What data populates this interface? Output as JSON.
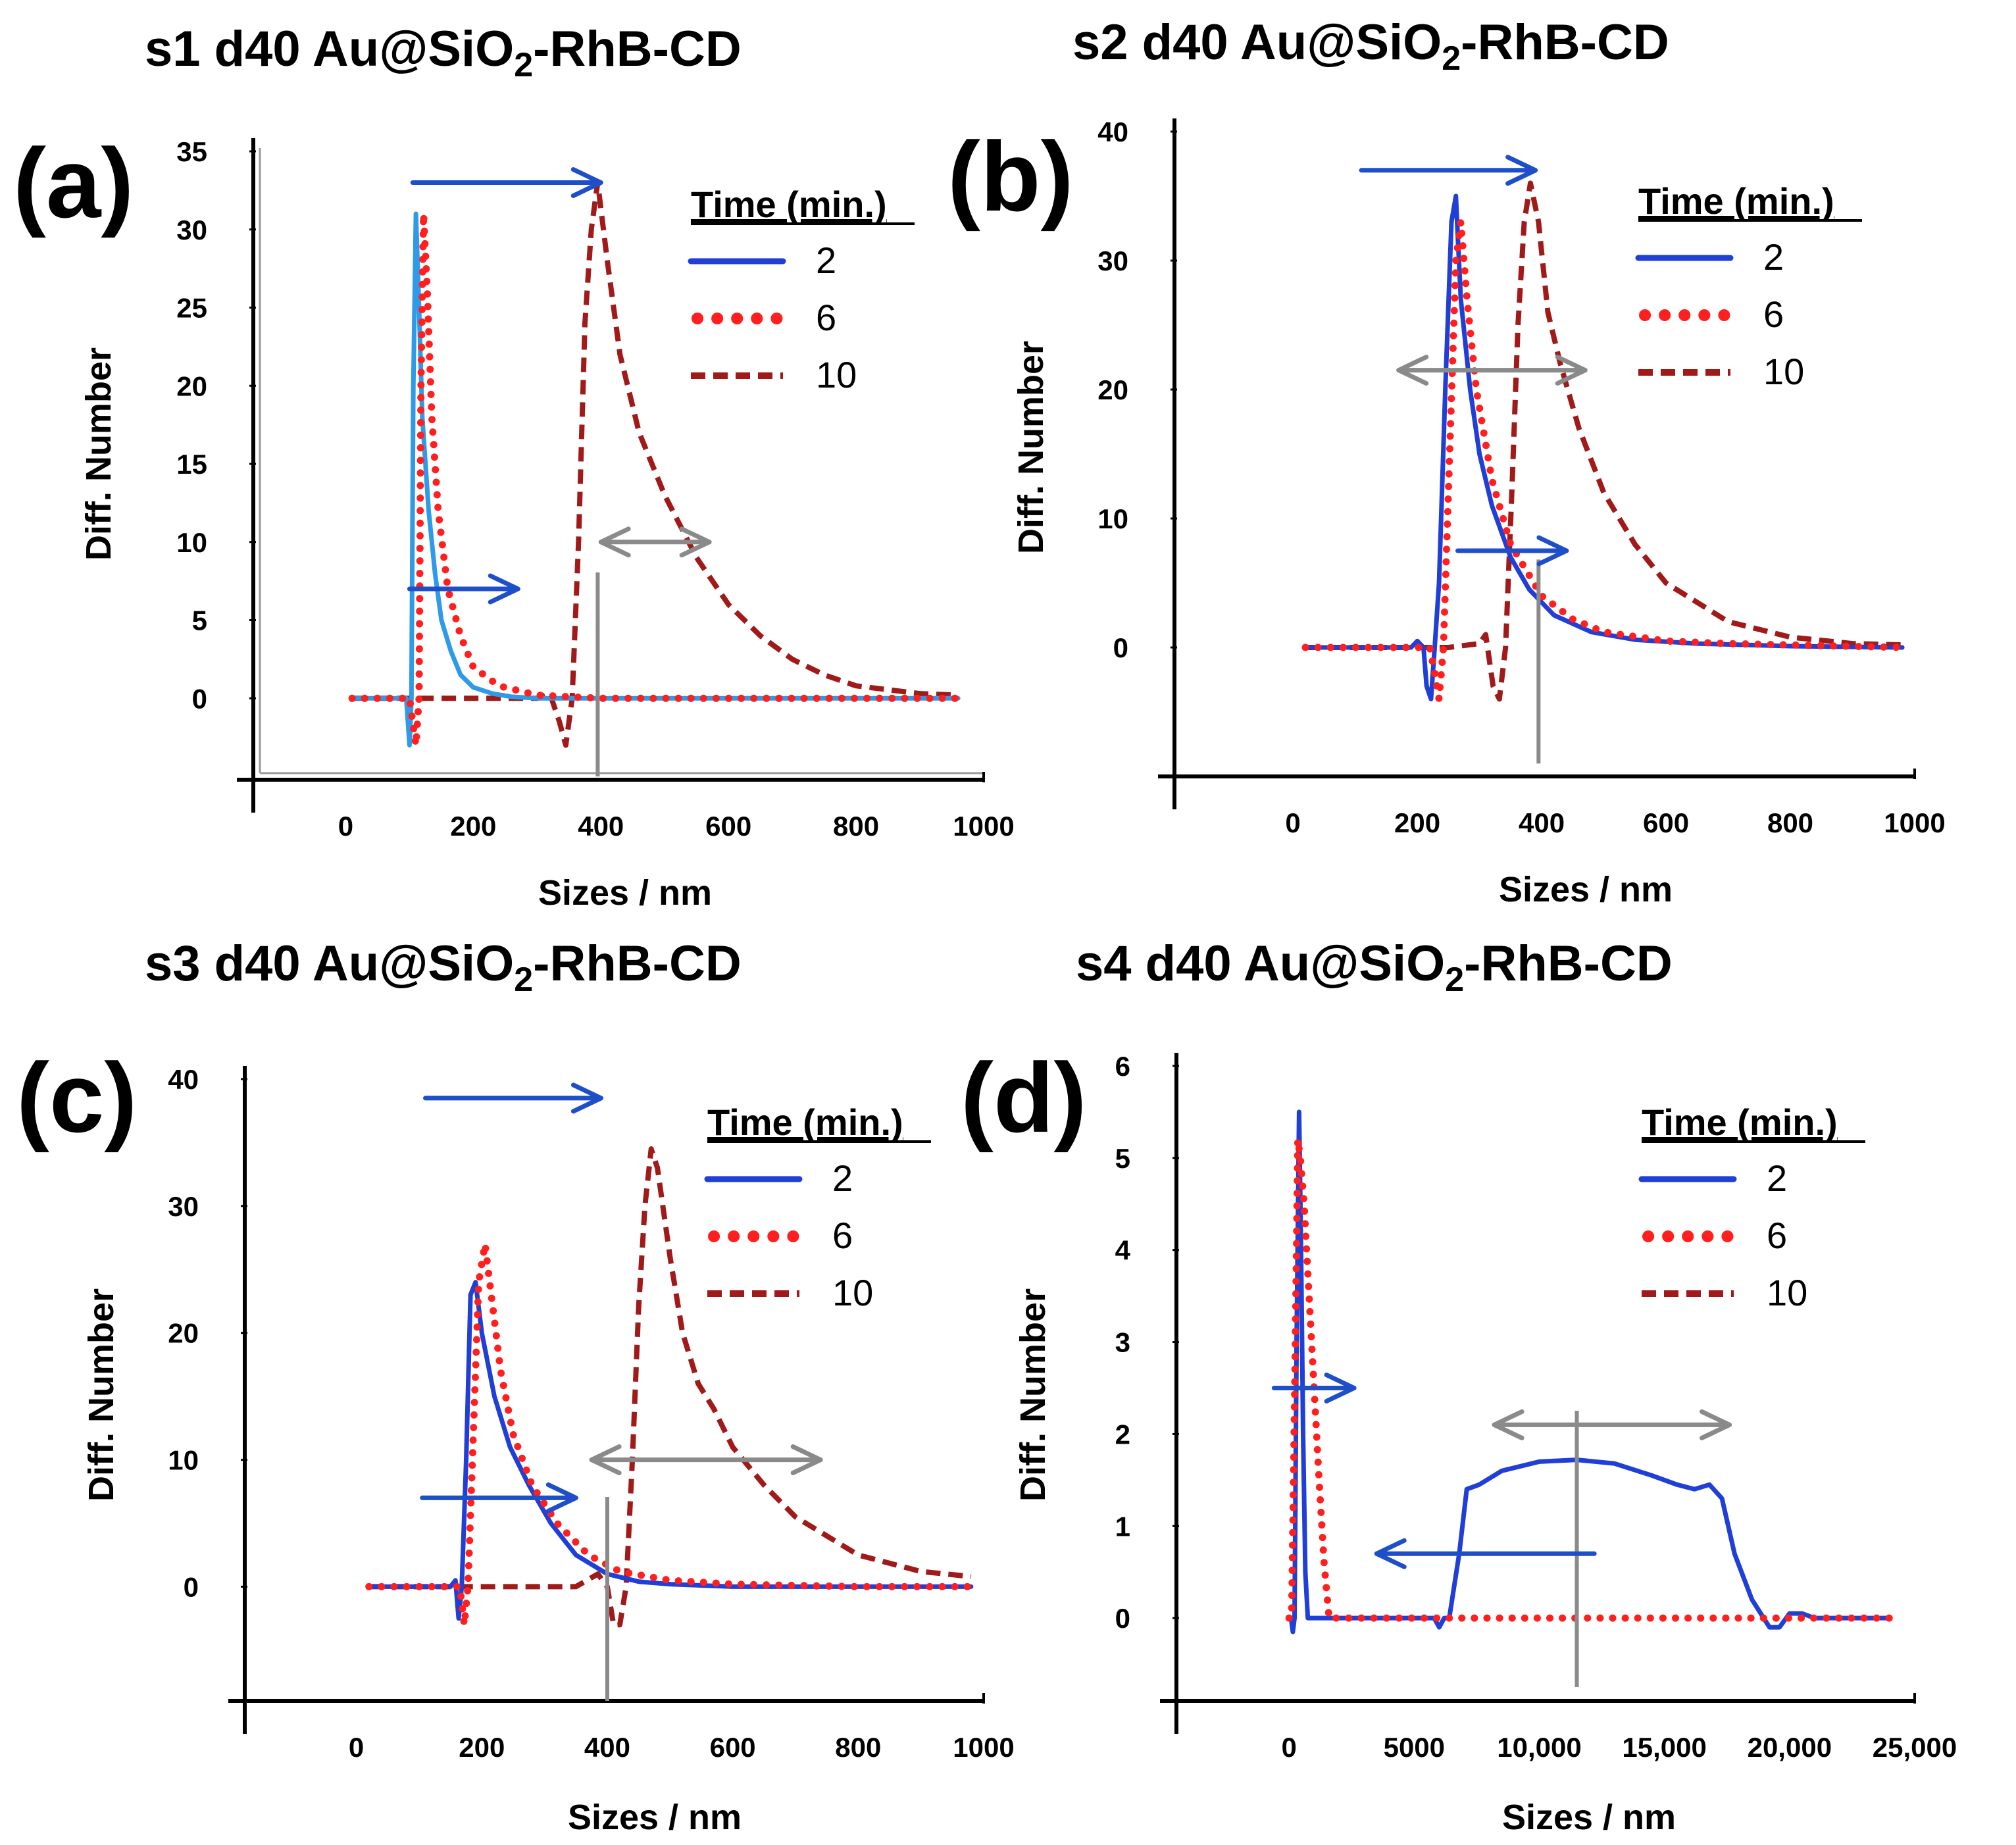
{
  "colors": {
    "t2": "#1f3fd6",
    "t2_light": "#2e9ae8",
    "t6": "#ff1f1f",
    "t10": "#a01a1a",
    "arrow_blue": "#1f4fc8",
    "arrow_gray": "#8a8a8a",
    "axis": "#000000"
  },
  "legend": {
    "title": "Time (min.)",
    "entries": [
      "2",
      "6",
      "10"
    ]
  },
  "chart_data": [
    {
      "id": "a",
      "type": "line",
      "letter": "(a)",
      "title": "s1 d40 Au@SiO",
      "title_sub": "2",
      "title_suffix": "-RhB-CD",
      "xlabel": "Sizes / nm",
      "ylabel": "Diff. Number",
      "xlim": [
        -150,
        1000
      ],
      "ylim": [
        -5,
        35
      ],
      "x_ticks": [
        {
          "v": 0,
          "label": "0"
        },
        {
          "v": 200,
          "label": "200"
        },
        {
          "v": 400,
          "label": "400"
        },
        {
          "v": 600,
          "label": "600"
        },
        {
          "v": 800,
          "label": "800"
        },
        {
          "v": 1000,
          "label": "1000"
        }
      ],
      "y_ticks": [
        {
          "v": 0,
          "label": "0"
        },
        {
          "v": 5,
          "label": "5"
        },
        {
          "v": 10,
          "label": "10"
        },
        {
          "v": 15,
          "label": "15"
        },
        {
          "v": 20,
          "label": "20"
        },
        {
          "v": 25,
          "label": "25"
        },
        {
          "v": 30,
          "label": "30"
        },
        {
          "v": 35,
          "label": "35"
        }
      ],
      "series": [
        {
          "name": "2",
          "style": "solid-light",
          "x": [
            10,
            95,
            100,
            103,
            106,
            110,
            115,
            120,
            130,
            140,
            150,
            165,
            180,
            200,
            230,
            260,
            300,
            400,
            600,
            800,
            960
          ],
          "y": [
            0,
            0,
            -3,
            0,
            20,
            31,
            25,
            18,
            12,
            8,
            5,
            3,
            1.5,
            0.7,
            0.3,
            0.1,
            0,
            0,
            0,
            0,
            0
          ]
        },
        {
          "name": "6",
          "style": "dotted",
          "x": [
            10,
            100,
            110,
            115,
            118,
            122,
            128,
            135,
            145,
            160,
            180,
            200,
            240,
            300,
            400,
            600,
            800,
            960
          ],
          "y": [
            0,
            0,
            -3,
            0,
            20,
            31,
            26,
            18,
            12,
            7,
            4,
            2,
            0.8,
            0.2,
            0,
            0,
            0,
            0
          ]
        },
        {
          "name": "10",
          "style": "dashed",
          "x": [
            10,
            200,
            300,
            320,
            335,
            345,
            355,
            365,
            375,
            385,
            395,
            410,
            430,
            460,
            500,
            550,
            600,
            650,
            700,
            750,
            800,
            900,
            960
          ],
          "y": [
            0,
            0,
            0,
            0.3,
            -1.5,
            -3,
            0,
            10,
            24,
            30,
            33,
            28,
            22,
            17,
            13,
            9,
            6,
            4,
            2.5,
            1.5,
            0.8,
            0.3,
            0.2
          ]
        }
      ],
      "markers": [
        {
          "x": 395,
          "y": -5
        }
      ],
      "arrows": [
        {
          "color": "arrow_blue",
          "dir": "right",
          "x1": 105,
          "x2": 400,
          "y": 33
        },
        {
          "color": "arrow_blue",
          "dir": "right",
          "x1": 100,
          "x2": 270,
          "y": 7
        },
        {
          "color": "arrow_gray",
          "dir": "both",
          "x1": 400,
          "x2": 570,
          "y": 10
        }
      ]
    },
    {
      "id": "b",
      "type": "line",
      "letter": "(b)",
      "title": "s2 d40 Au@SiO",
      "title_sub": "2",
      "title_suffix": "-RhB-CD",
      "xlabel": "Sizes / nm",
      "ylabel": "Diff. Number",
      "xlim": [
        -180,
        1000
      ],
      "ylim": [
        -10,
        40
      ],
      "x_ticks": [
        {
          "v": 0,
          "label": "0"
        },
        {
          "v": 200,
          "label": "200"
        },
        {
          "v": 400,
          "label": "400"
        },
        {
          "v": 600,
          "label": "600"
        },
        {
          "v": 800,
          "label": "800"
        },
        {
          "v": 1000,
          "label": "1000"
        }
      ],
      "y_ticks": [
        {
          "v": 0,
          "label": "0"
        },
        {
          "v": 10,
          "label": "10"
        },
        {
          "v": 20,
          "label": "20"
        },
        {
          "v": 30,
          "label": "30"
        },
        {
          "v": 40,
          "label": "40"
        }
      ],
      "series": [
        {
          "name": "2",
          "style": "solid",
          "x": [
            20,
            190,
            200,
            210,
            215,
            222,
            228,
            235,
            245,
            255,
            262,
            270,
            285,
            300,
            320,
            350,
            380,
            420,
            480,
            550,
            650,
            800,
            980
          ],
          "y": [
            0,
            0,
            0.5,
            0,
            -3,
            -4,
            0,
            5,
            20,
            33,
            35,
            27,
            20,
            15,
            11,
            7,
            4.5,
            2.5,
            1.2,
            0.6,
            0.3,
            0.1,
            0
          ]
        },
        {
          "name": "6",
          "style": "dotted",
          "x": [
            20,
            220,
            228,
            235,
            242,
            250,
            262,
            270,
            280,
            295,
            320,
            350,
            400,
            450,
            500,
            600,
            700,
            800,
            980
          ],
          "y": [
            0,
            0,
            -2,
            -4,
            0,
            12,
            30,
            33,
            27,
            20,
            13,
            8,
            4,
            2.2,
            1.2,
            0.5,
            0.3,
            0.2,
            0
          ]
        },
        {
          "name": "10",
          "style": "dashed",
          "x": [
            20,
            250,
            300,
            310,
            322,
            332,
            342,
            352,
            362,
            372,
            382,
            395,
            410,
            430,
            460,
            500,
            550,
            600,
            650,
            700,
            800,
            900,
            980
          ],
          "y": [
            0,
            0,
            0.3,
            1,
            -3,
            -4,
            0,
            12,
            25,
            33,
            36,
            33,
            26,
            22,
            17,
            12,
            8,
            5,
            3.5,
            2,
            0.8,
            0.3,
            0.2
          ]
        }
      ],
      "markers": [
        {
          "x": 395,
          "y": -9
        }
      ],
      "arrows": [
        {
          "color": "arrow_blue",
          "dir": "right",
          "x1": 110,
          "x2": 390,
          "y": 37
        },
        {
          "color": "arrow_blue",
          "dir": "right",
          "x1": 265,
          "x2": 440,
          "y": 7.5
        },
        {
          "color": "arrow_gray",
          "dir": "both",
          "x1": 170,
          "x2": 470,
          "y": 21.5
        }
      ]
    },
    {
      "id": "c",
      "type": "line",
      "letter": "(c)",
      "title": "s3 d40 Au@SiO",
      "title_sub": "2",
      "title_suffix": "-RhB-CD",
      "xlabel": "Sizes / nm",
      "ylabel": "Diff. Number",
      "xlim": [
        -180,
        1000
      ],
      "ylim": [
        -9,
        40
      ],
      "x_ticks": [
        {
          "v": 0,
          "label": "0"
        },
        {
          "v": 200,
          "label": "200"
        },
        {
          "v": 400,
          "label": "400"
        },
        {
          "v": 600,
          "label": "600"
        },
        {
          "v": 800,
          "label": "800"
        },
        {
          "v": 1000,
          "label": "1000"
        }
      ],
      "y_ticks": [
        {
          "v": 0,
          "label": "0"
        },
        {
          "v": 10,
          "label": "10"
        },
        {
          "v": 20,
          "label": "20"
        },
        {
          "v": 30,
          "label": "30"
        },
        {
          "v": 40,
          "label": "40"
        }
      ],
      "series": [
        {
          "name": "2",
          "style": "solid",
          "x": [
            20,
            150,
            158,
            163,
            168,
            175,
            182,
            190,
            200,
            220,
            245,
            275,
            310,
            350,
            400,
            450,
            500,
            600,
            800,
            980
          ],
          "y": [
            0,
            0,
            0.5,
            -2.5,
            0,
            10,
            23,
            24,
            20,
            15,
            11,
            8,
            5,
            2.5,
            1,
            0.4,
            0.2,
            0,
            0,
            0
          ]
        },
        {
          "name": "6",
          "style": "dotted",
          "x": [
            20,
            165,
            172,
            178,
            185,
            195,
            205,
            215,
            230,
            250,
            280,
            320,
            370,
            420,
            500,
            600,
            800,
            980
          ],
          "y": [
            0,
            0,
            -3,
            0,
            10,
            24,
            27,
            23,
            17,
            12,
            8,
            5,
            2.5,
            1.2,
            0.5,
            0.2,
            0,
            0
          ]
        },
        {
          "name": "10",
          "style": "dashed",
          "x": [
            20,
            350,
            385,
            400,
            410,
            420,
            430,
            440,
            450,
            460,
            470,
            480,
            500,
            520,
            545,
            570,
            600,
            650,
            700,
            750,
            800,
            900,
            980
          ],
          "y": [
            0,
            0,
            1,
            0,
            -3,
            -3,
            0,
            10,
            22,
            30,
            34.5,
            33,
            26,
            20,
            16,
            14,
            11,
            8,
            5.5,
            4,
            2.5,
            1.2,
            0.8
          ]
        }
      ],
      "markers": [
        {
          "x": 400,
          "y": -9
        }
      ],
      "arrows": [
        {
          "color": "arrow_blue",
          "dir": "right",
          "x1": 110,
          "x2": 390,
          "y": 38.5
        },
        {
          "color": "arrow_blue",
          "dir": "right",
          "x1": 105,
          "x2": 350,
          "y": 7
        },
        {
          "color": "arrow_gray",
          "dir": "both",
          "x1": 375,
          "x2": 740,
          "y": 10
        }
      ]
    },
    {
      "id": "d",
      "type": "line",
      "letter": "(d)",
      "title": "s4 d40 Au@SiO",
      "title_sub": "2",
      "title_suffix": "-RhB-CD",
      "xlabel": "Sizes / nm",
      "ylabel": "Diff. Number",
      "xlim": [
        -4500,
        25000
      ],
      "ylim": [
        -0.9,
        6
      ],
      "x_ticks": [
        {
          "v": 0,
          "label": "0"
        },
        {
          "v": 5000,
          "label": "5000"
        },
        {
          "v": 10000,
          "label": "10,000"
        },
        {
          "v": 15000,
          "label": "15,000"
        },
        {
          "v": 20000,
          "label": "20,000"
        },
        {
          "v": 25000,
          "label": "25,000"
        }
      ],
      "y_ticks": [
        {
          "v": 0,
          "label": "0"
        },
        {
          "v": 1,
          "label": "1"
        },
        {
          "v": 2,
          "label": "2"
        },
        {
          "v": 3,
          "label": "3"
        },
        {
          "v": 4,
          "label": "4"
        },
        {
          "v": 5,
          "label": "5"
        },
        {
          "v": 6,
          "label": "6"
        }
      ],
      "series": [
        {
          "name": "2",
          "style": "solid",
          "x": [
            0,
            80,
            150,
            220,
            300,
            400,
            480,
            560,
            650,
            750,
            850,
            5800,
            6000,
            6200,
            6400,
            6800,
            7100,
            7600,
            8500,
            10000,
            11500,
            13000,
            14500,
            15500,
            16200,
            16800,
            17300,
            17800,
            18500,
            19200,
            19600,
            20000,
            20500,
            21000,
            21500,
            22000,
            24000
          ],
          "y": [
            0,
            0,
            -0.15,
            0,
            3,
            5.5,
            4,
            2,
            0.5,
            0,
            0,
            0,
            -0.1,
            0,
            0,
            0.7,
            1.4,
            1.45,
            1.6,
            1.7,
            1.72,
            1.68,
            1.55,
            1.45,
            1.4,
            1.45,
            1.3,
            0.7,
            0.2,
            -0.1,
            -0.1,
            0.05,
            0.05,
            0,
            0,
            0,
            0
          ]
        },
        {
          "name": "6",
          "style": "dotted",
          "x": [
            0,
            100,
            250,
            350,
            450,
            600,
            800,
            1000,
            1200,
            1400,
            1600,
            1800,
            24000
          ],
          "y": [
            0,
            0,
            3,
            5.2,
            5,
            4.5,
            3.5,
            2.5,
            1.5,
            0.6,
            0,
            0,
            0
          ]
        }
      ],
      "markers": [
        {
          "x": 11500,
          "y": -0.75
        }
      ],
      "arrows": [
        {
          "color": "arrow_blue",
          "dir": "right",
          "x1": -600,
          "x2": 2600,
          "y": 2.5
        },
        {
          "color": "arrow_blue",
          "dir": "left",
          "x1": 12200,
          "x2": 3500,
          "y": 0.7
        },
        {
          "color": "arrow_gray",
          "dir": "both",
          "x1": 8200,
          "x2": 17600,
          "y": 2.1
        }
      ]
    }
  ]
}
